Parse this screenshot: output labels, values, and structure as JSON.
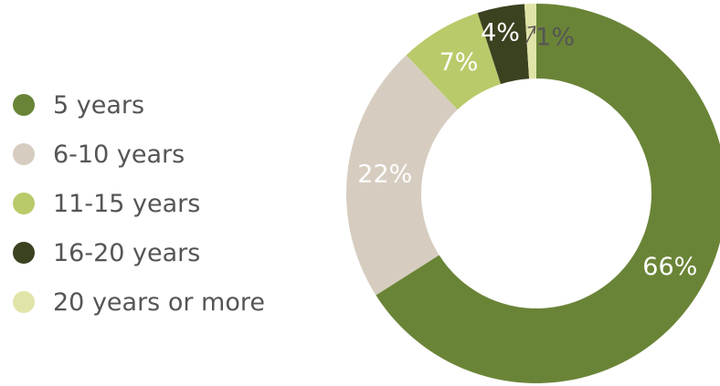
{
  "chart_data": {
    "type": "pie",
    "variant": "donut",
    "title": "",
    "legend_position": "left",
    "slices": [
      {
        "name": "5 years",
        "value": 66,
        "label": "66%",
        "color": "#6a8437",
        "label_color": "#ffffff"
      },
      {
        "name": "6-10 years",
        "value": 22,
        "label": "22%",
        "color": "#d6cdc0",
        "label_color": "#ffffff"
      },
      {
        "name": "11-15 years",
        "value": 7,
        "label": "7%",
        "color": "#b9ca6a",
        "label_color": "#ffffff"
      },
      {
        "name": "16-20 years",
        "value": 4,
        "label": "4%",
        "color": "#3b4220",
        "label_color": "#ffffff"
      },
      {
        "name": "20 years or more",
        "value": 1,
        "label": "1%",
        "color": "#e1e4a8",
        "label_color": "#555555"
      }
    ]
  }
}
